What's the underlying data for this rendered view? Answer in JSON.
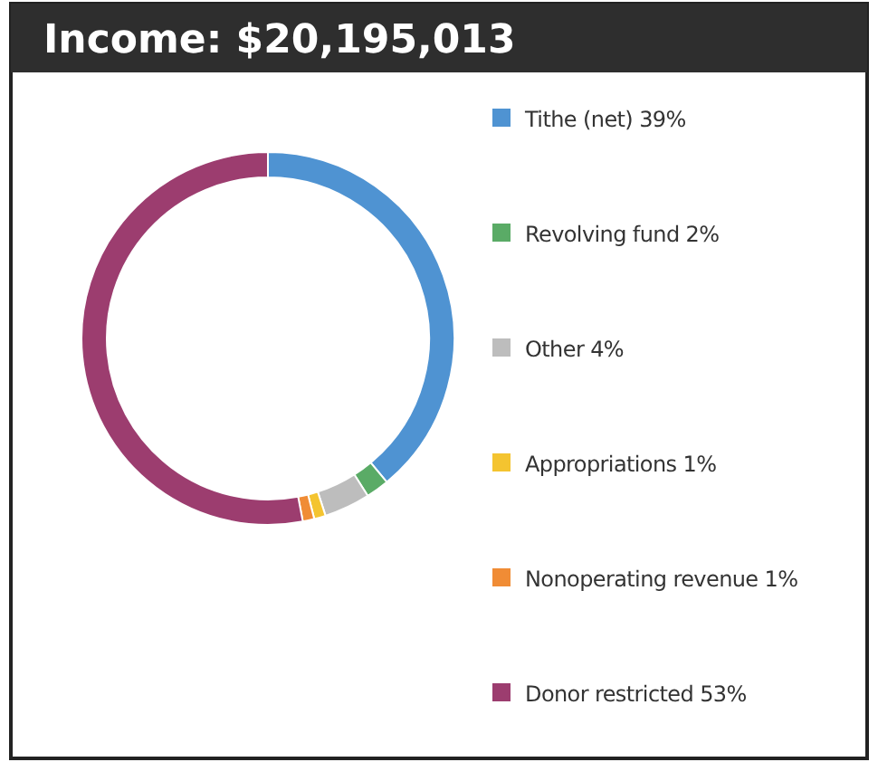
{
  "chart_data": {
    "type": "donut",
    "title": "Income: $20,195,013",
    "categories": [
      "Tithe (net)",
      "Revolving fund",
      "Other",
      "Appropriations",
      "Nonoperating revenue",
      "Donor restricted"
    ],
    "values": [
      39,
      2,
      4,
      1,
      1,
      53
    ],
    "value_labels": [
      "39%",
      "2%",
      "4%",
      "1%",
      "1%",
      "53%"
    ],
    "colors": [
      "#4f93d2",
      "#5aab66",
      "#bdbdbd",
      "#f4c430",
      "#f08c35",
      "#9c3d6f"
    ],
    "legend": "right"
  }
}
